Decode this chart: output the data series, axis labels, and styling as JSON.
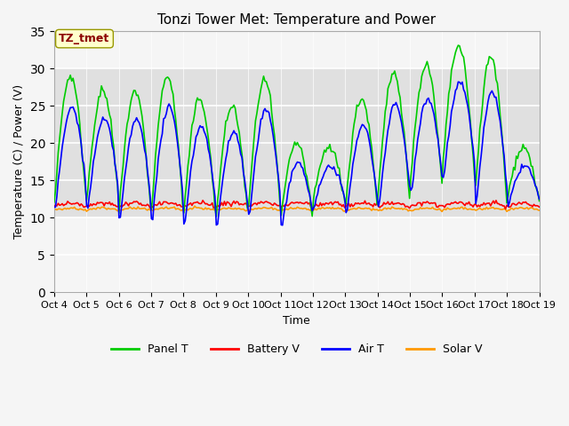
{
  "title": "Tonzi Tower Met: Temperature and Power",
  "xlabel": "Time",
  "ylabel": "Temperature (C) / Power (V)",
  "ylim": [
    0,
    35
  ],
  "yticks": [
    0,
    5,
    10,
    15,
    20,
    25,
    30,
    35
  ],
  "annotation": "TZ_tmet",
  "annotation_color": "#8B0000",
  "annotation_bg": "#FFFFCC",
  "annotation_edge": "#999900",
  "bg_band_low": 10,
  "bg_band_high": 30,
  "fig_bg": "#F5F5F5",
  "band_color": "#E0E0E0",
  "colors": {
    "Panel T": "#00CC00",
    "Battery V": "#FF0000",
    "Air T": "#0000FF",
    "Solar V": "#FF9900"
  },
  "legend_labels": [
    "Panel T",
    "Battery V",
    "Air T",
    "Solar V"
  ],
  "panel_peaks": [
    29,
    27,
    27,
    29,
    26,
    25,
    28.5,
    20,
    19.5,
    26,
    29.5,
    30.5,
    33,
    31.5,
    19.5
  ],
  "panel_troughs": [
    12,
    12,
    10.5,
    10.5,
    10,
    9.5,
    11,
    9.5,
    12,
    11,
    12,
    14,
    16,
    12,
    12
  ],
  "n_days": 15,
  "n_points": 360,
  "day_start": 4,
  "day_end": 19
}
